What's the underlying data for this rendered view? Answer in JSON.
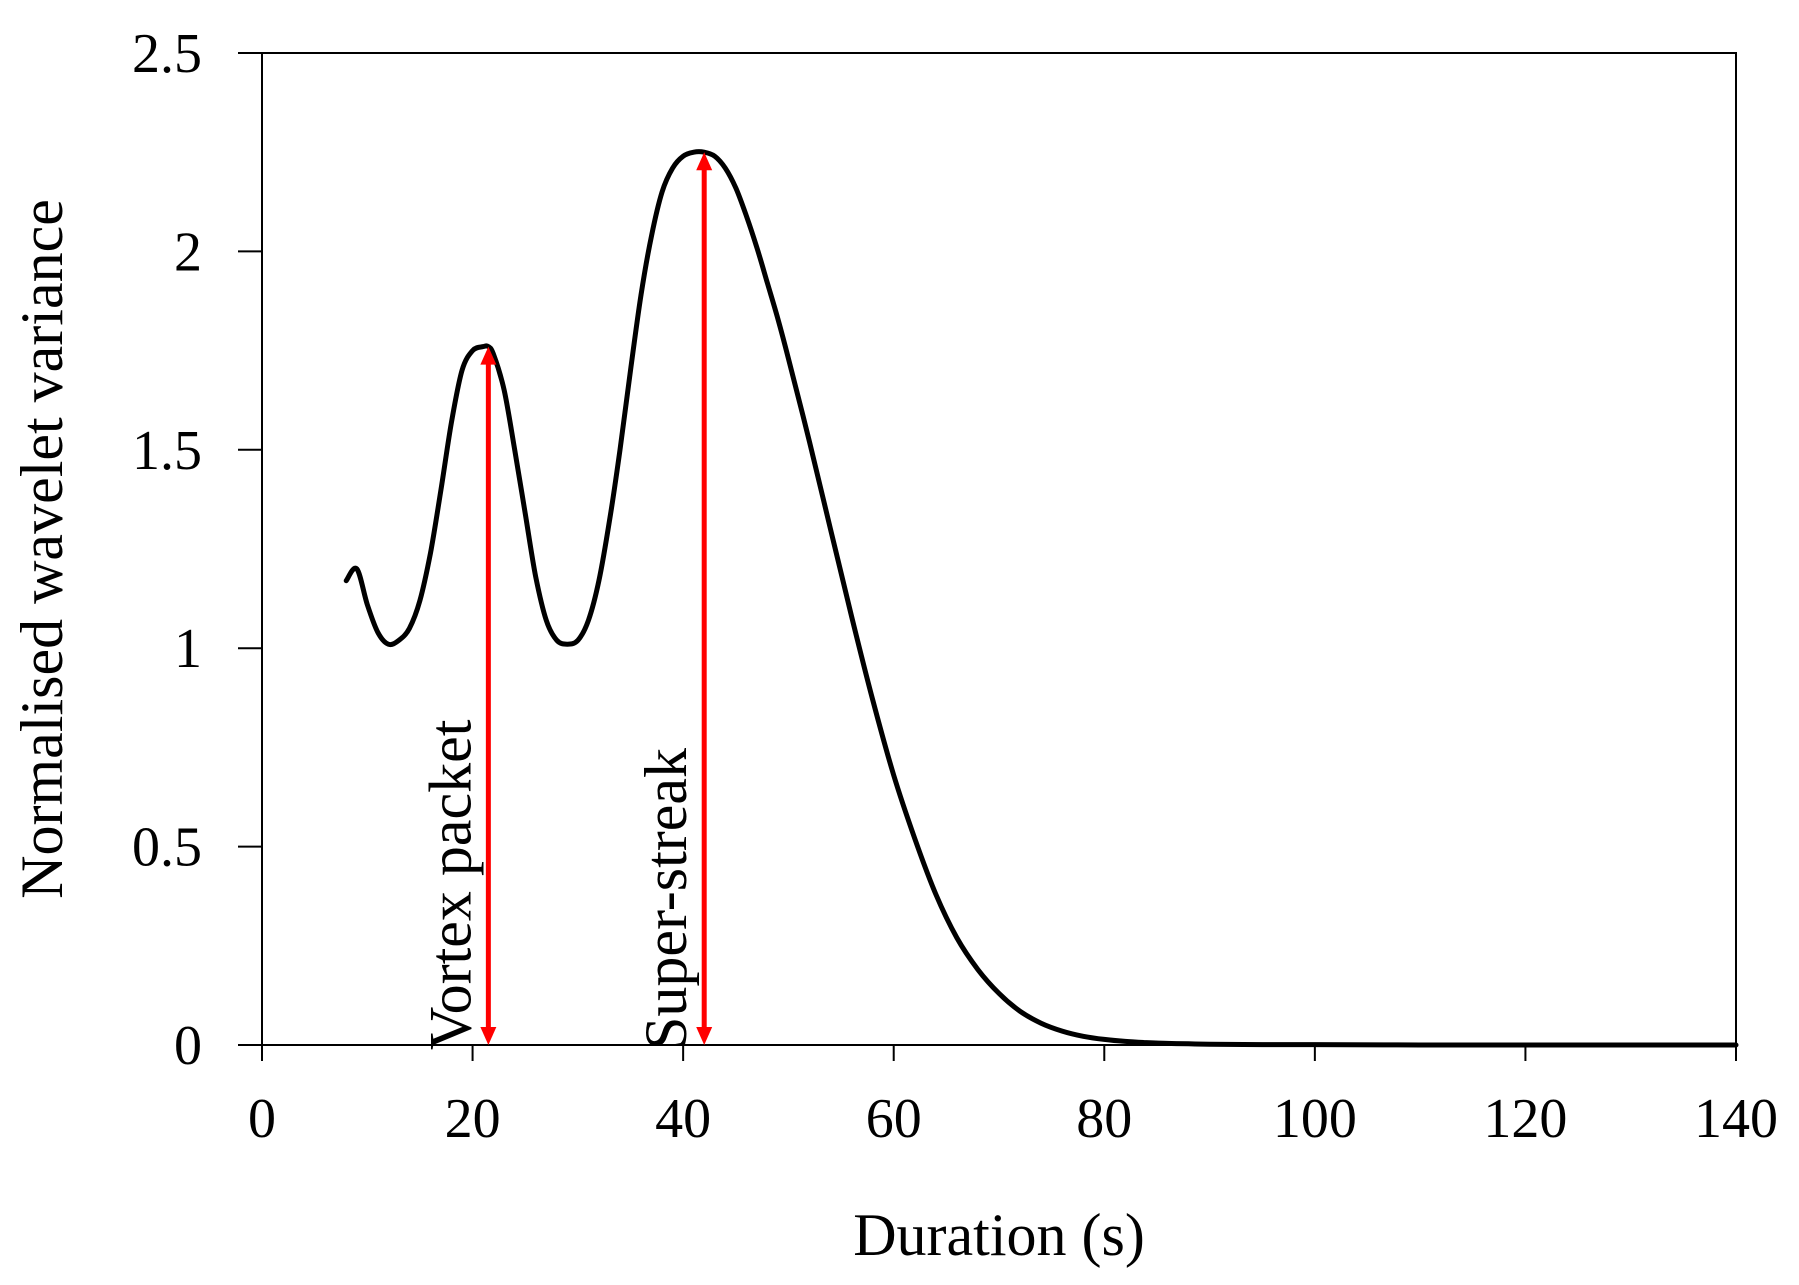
{
  "chart_data": {
    "type": "line",
    "title": "",
    "xlabel": "Duration (s)",
    "ylabel": "Normalised wavelet variance",
    "xlim": [
      0,
      140
    ],
    "ylim": [
      0,
      2.5
    ],
    "x_ticks": [
      0,
      20,
      40,
      60,
      80,
      100,
      120,
      140
    ],
    "x_tick_labels": [
      "0",
      "20",
      "40",
      "60",
      "80",
      "100",
      "120",
      "140"
    ],
    "y_ticks": [
      0,
      0.5,
      1,
      1.5,
      2,
      2.5
    ],
    "y_tick_labels": [
      "0",
      "0.5",
      "1",
      "1.5",
      "2",
      "2.5"
    ],
    "grid": false,
    "series": [
      {
        "name": "Normalised wavelet variance",
        "color": "#000000",
        "x": [
          8,
          9,
          10,
          11,
          12,
          13,
          14,
          15,
          16,
          17,
          18,
          19,
          20,
          21,
          21.5,
          22,
          23,
          24,
          25,
          26,
          27,
          28,
          29,
          30,
          31,
          32,
          33,
          34,
          35,
          36,
          37,
          38,
          39,
          40,
          41,
          42,
          43,
          44,
          45,
          46,
          47,
          48,
          49,
          50,
          52,
          54,
          56,
          58,
          60,
          62,
          64,
          66,
          68,
          70,
          72,
          74,
          76,
          78,
          80,
          82,
          84,
          86,
          88,
          90,
          95,
          100,
          110,
          120,
          130,
          140
        ],
        "y": [
          1.17,
          1.2,
          1.11,
          1.04,
          1.01,
          1.02,
          1.05,
          1.12,
          1.24,
          1.4,
          1.57,
          1.7,
          1.75,
          1.76,
          1.76,
          1.74,
          1.65,
          1.5,
          1.34,
          1.18,
          1.07,
          1.02,
          1.01,
          1.02,
          1.07,
          1.17,
          1.32,
          1.5,
          1.7,
          1.89,
          2.04,
          2.15,
          2.21,
          2.24,
          2.25,
          2.25,
          2.24,
          2.21,
          2.16,
          2.09,
          2.01,
          1.92,
          1.83,
          1.73,
          1.52,
          1.3,
          1.08,
          0.87,
          0.68,
          0.52,
          0.38,
          0.27,
          0.19,
          0.13,
          0.085,
          0.055,
          0.035,
          0.022,
          0.014,
          0.009,
          0.006,
          0.004,
          0.003,
          0.002,
          0.001,
          0.001,
          0.0,
          0.0,
          0.0,
          0.0
        ]
      }
    ],
    "annotations": [
      {
        "name": "vortex-packet",
        "text": "Vortex packet",
        "x": 21.5,
        "y_from": 0,
        "y_to": 1.76,
        "color": "#ff0000"
      },
      {
        "name": "super-streak",
        "text": "Super-streak",
        "x": 42,
        "y_from": 0,
        "y_to": 2.25,
        "color": "#ff0000"
      }
    ]
  }
}
